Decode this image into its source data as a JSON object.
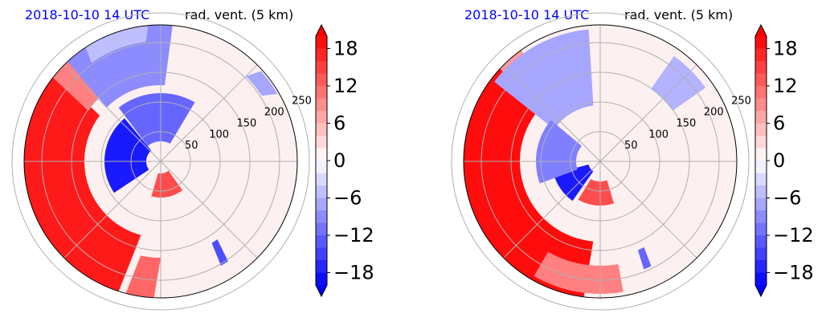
{
  "panels": [
    {
      "id": "left",
      "title_left": "2018-10-10 14 UTC",
      "title_right": "rad. vent. (5 km)"
    },
    {
      "id": "right",
      "title_left": "2018-10-10 14 UTC",
      "title_right": "rad. vent. (5 km)"
    }
  ],
  "chart_data": [
    {
      "type": "heatmap",
      "projection": "polar",
      "title": "2018-10-10 14 UTC rad. vent. (5 km)",
      "radial_ticks": [
        50,
        100,
        150,
        200,
        250
      ],
      "colorbar": {
        "ticks": [
          "18",
          "12",
          "6",
          "0",
          "−6",
          "−12",
          "−18"
        ],
        "tick_values": [
          18,
          12,
          6,
          0,
          -6,
          -12,
          -18
        ],
        "vmin": -20,
        "vmax": 20,
        "extend": "both",
        "colors": {
          "negative": "#0000ff",
          "neutral": "#ffffff",
          "positive": "#ff0000"
        }
      },
      "features": [
        {
          "sign": "positive",
          "sector": "west",
          "intensity": 0.95
        },
        {
          "sign": "negative",
          "sector": "north-west",
          "intensity": 0.7
        },
        {
          "sign": "negative",
          "sector": "center-west",
          "intensity": 0.95
        }
      ]
    },
    {
      "type": "heatmap",
      "projection": "polar",
      "title": "2018-10-10 14 UTC rad. vent. (5 km)",
      "radial_ticks": [
        50,
        100,
        150,
        200,
        250
      ],
      "colorbar": {
        "ticks": [
          "18",
          "12",
          "6",
          "0",
          "−6",
          "−12",
          "−18"
        ],
        "tick_values": [
          18,
          12,
          6,
          0,
          -6,
          -12,
          -18
        ],
        "vmin": -20,
        "vmax": 20,
        "extend": "both",
        "colors": {
          "negative": "#0000ff",
          "neutral": "#ffffff",
          "positive": "#ff0000"
        }
      },
      "features": [
        {
          "sign": "positive",
          "sector": "west",
          "intensity": 1.0
        },
        {
          "sign": "negative",
          "sector": "north-west",
          "intensity": 0.6
        },
        {
          "sign": "negative",
          "sector": "center-south-west",
          "intensity": 0.95
        }
      ]
    }
  ]
}
